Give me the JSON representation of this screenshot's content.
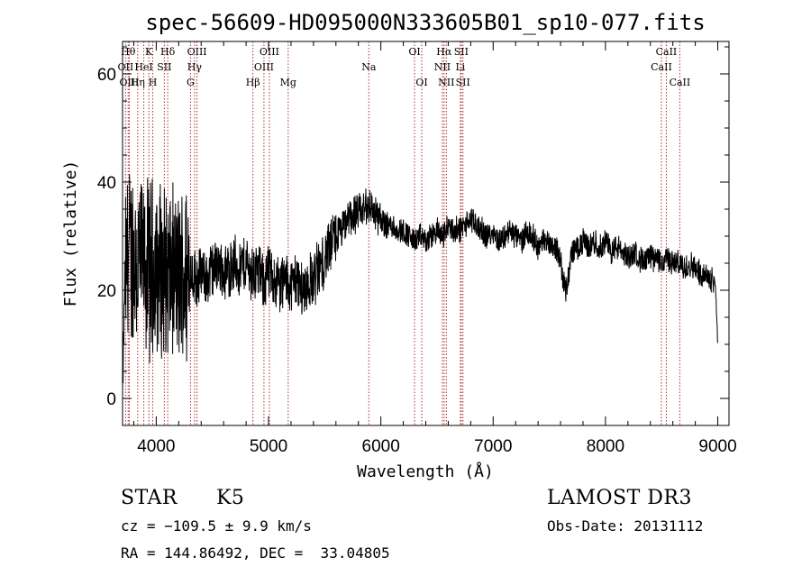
{
  "chart_data": {
    "type": "line",
    "title": "spec-56609-HD095000N333605B01_sp10-077.fits",
    "xlabel": "Wavelength (Å)",
    "ylabel": "Flux (relative)",
    "xlim": [
      3700,
      9100
    ],
    "ylim": [
      -5,
      66
    ],
    "xticks": [
      4000,
      5000,
      6000,
      7000,
      8000,
      9000
    ],
    "yticks": [
      0,
      20,
      40,
      60
    ],
    "grid": false,
    "legend": "none",
    "spectrum_color": "#000000",
    "marker_color": "#b03030",
    "spectrum_envelope": {
      "x": [
        3700,
        3720,
        3760,
        3800,
        3850,
        3900,
        3950,
        4000,
        4050,
        4100,
        4150,
        4200,
        4250,
        4300,
        4350,
        4400,
        4450,
        4500,
        4550,
        4600,
        4650,
        4700,
        4750,
        4800,
        4850,
        4900,
        4950,
        5000,
        5050,
        5100,
        5150,
        5200,
        5250,
        5300,
        5350,
        5400,
        5450,
        5500,
        5550,
        5600,
        5650,
        5700,
        5750,
        5800,
        5850,
        5900,
        5950,
        6000,
        6050,
        6100,
        6150,
        6200,
        6250,
        6300,
        6350,
        6400,
        6450,
        6500,
        6550,
        6600,
        6650,
        6700,
        6750,
        6800,
        6850,
        6900,
        6950,
        7000,
        7050,
        7100,
        7150,
        7200,
        7250,
        7300,
        7350,
        7400,
        7450,
        7500,
        7550,
        7600,
        7620,
        7650,
        7680,
        7700,
        7750,
        7800,
        7850,
        7900,
        7950,
        8000,
        8050,
        8100,
        8150,
        8200,
        8250,
        8300,
        8350,
        8400,
        8450,
        8500,
        8550,
        8600,
        8650,
        8700,
        8750,
        8800,
        8850,
        8900,
        8950,
        8980,
        9000
      ],
      "y": [
        0,
        22,
        28,
        26,
        25,
        24,
        25,
        24,
        23,
        22,
        23,
        22,
        23,
        24,
        22,
        23,
        22,
        24,
        25,
        23,
        24,
        25,
        24,
        25,
        23,
        24,
        22,
        23,
        22,
        21,
        22,
        21,
        22,
        20,
        21,
        22,
        24,
        26,
        28,
        30,
        31,
        33,
        34,
        34,
        35,
        36,
        34,
        33,
        32,
        32,
        31,
        31,
        30,
        29,
        30,
        29,
        30,
        31,
        30,
        32,
        31,
        31,
        32,
        33,
        32,
        31,
        30,
        31,
        29,
        30,
        31,
        30,
        29,
        31,
        30,
        28,
        29,
        29,
        28,
        26,
        22,
        20,
        24,
        27,
        28,
        29,
        28,
        29,
        28,
        29,
        27,
        28,
        27,
        26,
        27,
        26,
        25,
        26,
        26,
        25,
        26,
        25,
        25,
        24,
        25,
        24,
        23,
        23,
        22,
        21,
        10
      ]
    },
    "spectral_lines": [
      {
        "label": "OII",
        "wavelength": 3727,
        "row": 2
      },
      {
        "label": "Hθ",
        "wavelength": 3750,
        "row": 1
      },
      {
        "label": "OIII",
        "wavelength": 3760,
        "row": 3
      },
      {
        "label": "Hη",
        "wavelength": 3835,
        "row": 3
      },
      {
        "label": "HeI",
        "wavelength": 3889,
        "row": 2
      },
      {
        "label": "K",
        "wavelength": 3934,
        "row": 1
      },
      {
        "label": "H",
        "wavelength": 3969,
        "row": 3
      },
      {
        "label": "SII",
        "wavelength": 4072,
        "row": 2
      },
      {
        "label": "Hδ",
        "wavelength": 4102,
        "row": 1
      },
      {
        "label": "G",
        "wavelength": 4305,
        "row": 3
      },
      {
        "label": "Hγ",
        "wavelength": 4341,
        "row": 2
      },
      {
        "label": "OIII",
        "wavelength": 4363,
        "row": 1
      },
      {
        "label": "Hβ",
        "wavelength": 4861,
        "row": 3
      },
      {
        "label": "OIII",
        "wavelength": 4959,
        "row": 2
      },
      {
        "label": "OIII",
        "wavelength": 5007,
        "row": 1
      },
      {
        "label": "Mg",
        "wavelength": 5175,
        "row": 3
      },
      {
        "label": "Na",
        "wavelength": 5893,
        "row": 2
      },
      {
        "label": "OI",
        "wavelength": 6300,
        "row": 1
      },
      {
        "label": "OI",
        "wavelength": 6364,
        "row": 3
      },
      {
        "label": "NII",
        "wavelength": 6548,
        "row": 2
      },
      {
        "label": "Hα",
        "wavelength": 6563,
        "row": 1
      },
      {
        "label": "NII",
        "wavelength": 6583,
        "row": 3
      },
      {
        "label": "Li",
        "wavelength": 6708,
        "row": 2
      },
      {
        "label": "SII",
        "wavelength": 6716,
        "row": 1
      },
      {
        "label": "SII",
        "wavelength": 6731,
        "row": 3
      },
      {
        "label": "CaII",
        "wavelength": 8498,
        "row": 2
      },
      {
        "label": "CaII",
        "wavelength": 8542,
        "row": 1
      },
      {
        "label": "CaII",
        "wavelength": 8662,
        "row": 3
      }
    ]
  },
  "info": {
    "object_class": "STAR",
    "subclass": "K5",
    "survey": "LAMOST DR3",
    "redshift": "cz = −109.5 ± 9.9 km/s",
    "obs_date": "Obs-Date: 20131112",
    "coordinates": "RA = 144.86492, DEC =  33.04805"
  }
}
